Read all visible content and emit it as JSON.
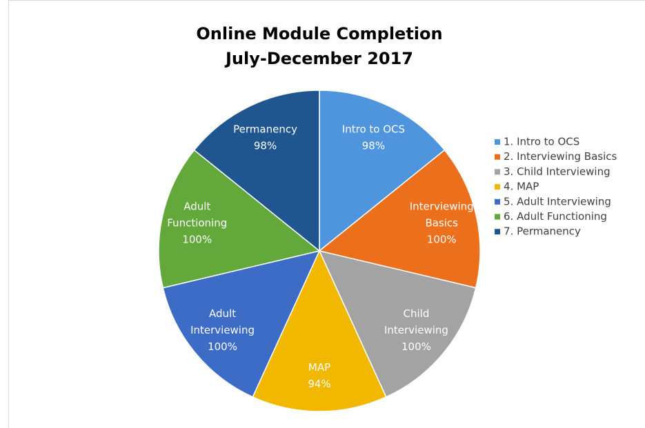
{
  "chart_data": {
    "type": "pie",
    "title": [
      "Online Module Completion",
      "July-December 2017"
    ],
    "categories": [
      "1. Intro to OCS",
      "2. Interviewing Basics",
      "3. Child Interviewing",
      "4. MAP",
      "5. Adult Interviewing",
      "6. Adult Functioning",
      "7. Permanency"
    ],
    "labels": [
      [
        "Intro to OCS"
      ],
      [
        "Interviewing",
        "Basics"
      ],
      [
        "Child",
        "Interviewing"
      ],
      [
        "MAP"
      ],
      [
        "Adult",
        "Interviewing"
      ],
      [
        "Adult",
        "Functioning"
      ],
      [
        "Permanency"
      ]
    ],
    "values": [
      98,
      100,
      100,
      94,
      100,
      100,
      98
    ],
    "value_labels": [
      "98%",
      "100%",
      "100%",
      "94%",
      "100%",
      "100%",
      "98%"
    ],
    "colors": [
      "#4e95dd",
      "#ec6f1c",
      "#a3a3a3",
      "#f2b800",
      "#3d6cc7",
      "#63a83a",
      "#1f5690"
    ],
    "legend": "right"
  }
}
